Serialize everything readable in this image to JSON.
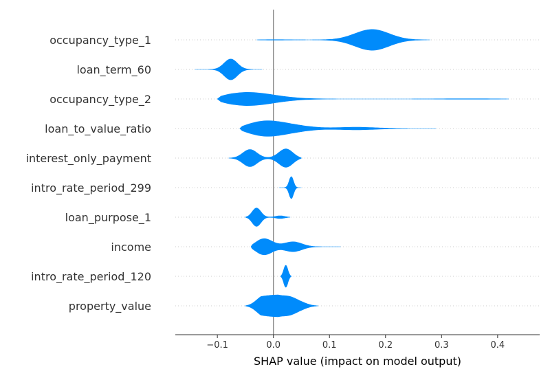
{
  "chart_data": {
    "type": "violin",
    "title": "",
    "xlabel": "SHAP value (impact on model output)",
    "ylabel": "",
    "xlim": [
      -0.175,
      0.475
    ],
    "xticks": [
      -0.1,
      0.0,
      0.1,
      0.2,
      0.3,
      0.4
    ],
    "xtick_labels": [
      "−0.1",
      "0.0",
      "0.1",
      "0.2",
      "0.3",
      "0.4"
    ],
    "grid": false,
    "zero_line": true,
    "color": "#008bfb",
    "features": [
      {
        "name": "occupancy_type_1",
        "range": [
          -0.03,
          0.28
        ],
        "peaks": [
          [
            -0.01,
            0.03
          ],
          [
            0.178,
            1.0
          ]
        ]
      },
      {
        "name": "loan_term_60",
        "range": [
          -0.14,
          -0.02
        ],
        "peaks": [
          [
            -0.076,
            0.95
          ]
        ]
      },
      {
        "name": "occupancy_type_2",
        "range": [
          -0.1,
          0.42
        ],
        "peaks": [
          [
            -0.063,
            0.95
          ],
          [
            0.36,
            0.03
          ]
        ]
      },
      {
        "name": "loan_to_value_ratio",
        "range": [
          -0.06,
          0.29
        ],
        "peaks": [
          [
            -0.025,
            0.9
          ],
          [
            0.03,
            0.25
          ],
          [
            0.15,
            0.12
          ]
        ]
      },
      {
        "name": "interest_only_payment",
        "range": [
          -0.08,
          0.05
        ],
        "peaks": [
          [
            -0.043,
            0.85
          ],
          [
            0.024,
            1.0
          ]
        ]
      },
      {
        "name": "intro_rate_period_299",
        "range": [
          0.01,
          0.05
        ],
        "peaks": [
          [
            0.032,
            1.0
          ]
        ]
      },
      {
        "name": "loan_purpose_1",
        "range": [
          -0.05,
          0.03
        ],
        "peaks": [
          [
            -0.031,
            0.95
          ],
          [
            0.013,
            0.15
          ]
        ]
      },
      {
        "name": "income",
        "range": [
          -0.04,
          0.12
        ],
        "peaks": [
          [
            -0.02,
            1.0
          ],
          [
            0.035,
            0.45
          ]
        ]
      },
      {
        "name": "intro_rate_period_120",
        "range": [
          0.013,
          0.032
        ],
        "peaks": [
          [
            0.022,
            1.0
          ]
        ]
      },
      {
        "name": "property_value",
        "range": [
          -0.05,
          0.08
        ],
        "peaks": [
          [
            -0.02,
            0.9
          ],
          [
            0.003,
            0.75
          ],
          [
            0.028,
            0.7
          ],
          [
            0.05,
            0.3
          ]
        ]
      }
    ]
  }
}
